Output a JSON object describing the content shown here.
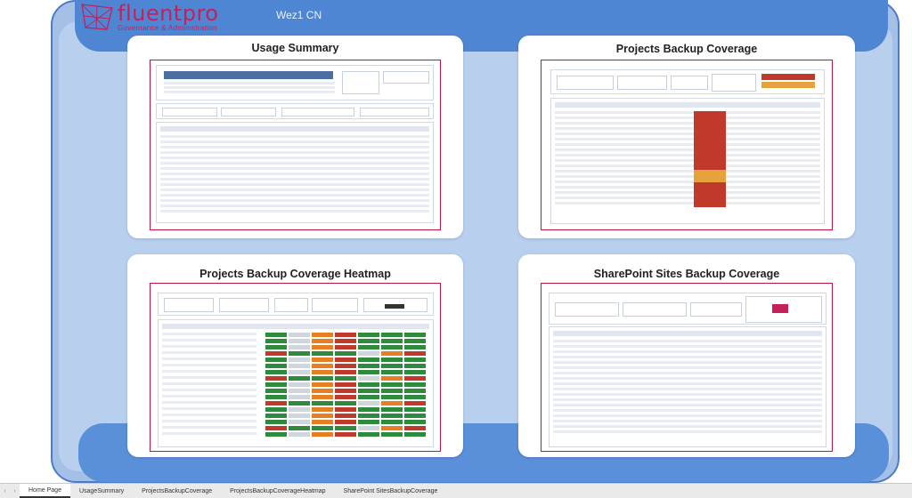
{
  "header": {
    "brand_name": "fluentpro",
    "brand_tagline": "Governance & Administration",
    "environment": "Wez1 CN"
  },
  "cards": [
    {
      "id": "usage-summary",
      "title": "Usage Summary"
    },
    {
      "id": "projects-backup-coverage",
      "title": "Projects Backup Coverage"
    },
    {
      "id": "projects-backup-coverage-heatmap",
      "title": "Projects Backup Coverage Heatmap"
    },
    {
      "id": "sharepoint-sites-backup-coverage",
      "title": "SharePoint Sites Backup Coverage"
    }
  ],
  "tabs": [
    {
      "label": "Home Page",
      "active": true
    },
    {
      "label": "UsageSummary",
      "active": false
    },
    {
      "label": "ProjectsBackupCoverage",
      "active": false
    },
    {
      "label": "ProjectsBackupCoverageHeatmap",
      "active": false
    },
    {
      "label": "SharePoint SitesBackupCoverage",
      "active": false
    }
  ],
  "colors": {
    "brand": "#c5205c",
    "frame": "#a4c0e6",
    "accent_blue": "#4f86d3",
    "thumb_border": "#c0143c"
  }
}
